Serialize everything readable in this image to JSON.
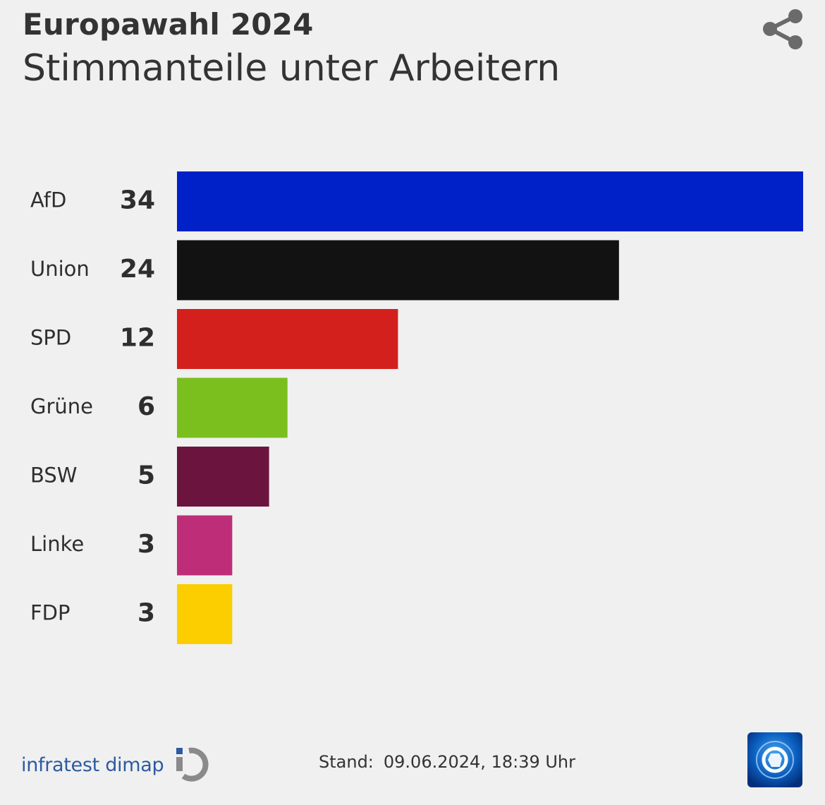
{
  "header": {
    "kicker": "Europawahl 2024",
    "title": "Stimmanteile unter Arbeitern"
  },
  "icons": {
    "share": "share-icon",
    "source_logo": "infratest-dimap-logo",
    "broadcaster_logo": "tagesschau-globe-logo"
  },
  "chart_data": {
    "type": "bar",
    "orientation": "horizontal",
    "title": "Stimmanteile unter Arbeitern",
    "categories": [
      "AfD",
      "Union",
      "SPD",
      "Grüne",
      "BSW",
      "Linke",
      "FDP"
    ],
    "values": [
      34,
      24,
      12,
      6,
      5,
      3,
      3
    ],
    "colors": [
      "#0021c8",
      "#121212",
      "#d3201c",
      "#7bbf1e",
      "#6b153e",
      "#be2e78",
      "#fcce00"
    ],
    "xlim": [
      0,
      34
    ],
    "unit": "%"
  },
  "footer": {
    "source": "infratest dimap",
    "stand_label": "Stand:",
    "stand_value": "09.06.2024, 18:39 Uhr"
  }
}
